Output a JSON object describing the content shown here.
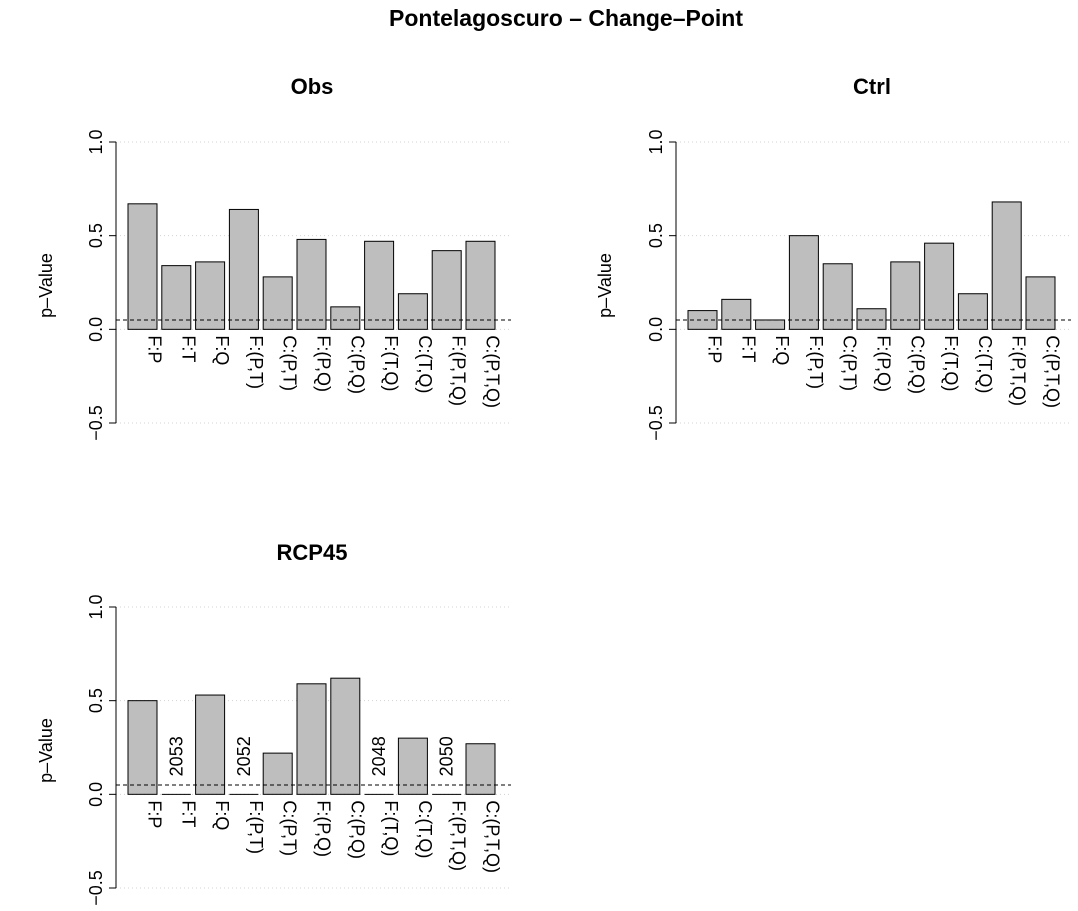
{
  "title": "Pontelagoscuro – Change–Point",
  "chart_data": [
    {
      "type": "bar",
      "title": "Obs",
      "ylabel": "p–Value",
      "ylim": [
        -0.5,
        1.0
      ],
      "yticks": [
        "−0.5",
        "0.0",
        "0.5",
        "1.0"
      ],
      "threshold": 0.05,
      "categories": [
        "F:P",
        "F:T",
        "F:Q",
        "F:(P,T)",
        "C:(P,T)",
        "F:(P,Q)",
        "C:(P,Q)",
        "F:(T,Q)",
        "C:(T,Q)",
        "F:(P,T,Q)",
        "C:(P,T,Q)"
      ],
      "values": [
        0.67,
        0.34,
        0.36,
        0.64,
        0.28,
        0.48,
        0.12,
        0.47,
        0.19,
        0.42,
        0.47
      ],
      "bar_labels": [
        "",
        "",
        "",
        "",
        "",
        "",
        "",
        "",
        "",
        "",
        ""
      ],
      "grid": "horizontal dotted"
    },
    {
      "type": "bar",
      "title": "Ctrl",
      "ylabel": "p–Value",
      "ylim": [
        -0.5,
        1.0
      ],
      "yticks": [
        "−0.5",
        "0.0",
        "0.5",
        "1.0"
      ],
      "threshold": 0.05,
      "categories": [
        "F:P",
        "F:T",
        "F:Q",
        "F:(P,T)",
        "C:(P,T)",
        "F:(P,Q)",
        "C:(P,Q)",
        "F:(T,Q)",
        "C:(T,Q)",
        "F:(P,T,Q)",
        "C:(P,T,Q)"
      ],
      "values": [
        0.1,
        0.16,
        0.05,
        0.5,
        0.35,
        0.11,
        0.36,
        0.46,
        0.19,
        0.68,
        0.28
      ],
      "bar_labels": [
        "",
        "",
        "",
        "",
        "",
        "",
        "",
        "",
        "",
        "",
        ""
      ],
      "grid": "horizontal dotted"
    },
    {
      "type": "bar",
      "title": "RCP45",
      "ylabel": "p–Value",
      "ylim": [
        -0.5,
        1.0
      ],
      "yticks": [
        "−0.5",
        "0.0",
        "0.5",
        "1.0"
      ],
      "threshold": 0.05,
      "categories": [
        "F:P",
        "F:T",
        "F:Q",
        "F:(P,T)",
        "C:(P,T)",
        "F:(P,Q)",
        "C:(P,Q)",
        "F:(T,Q)",
        "C:(T,Q)",
        "F:(P,T,Q)",
        "C:(P,T,Q)"
      ],
      "values": [
        0.5,
        0.0,
        0.53,
        0.0,
        0.22,
        0.59,
        0.62,
        0.0,
        0.3,
        0.0,
        0.27
      ],
      "bar_labels": [
        "",
        "2053",
        "",
        "2052",
        "",
        "",
        "",
        "2048",
        "",
        "2050",
        ""
      ],
      "grid": "horizontal dotted"
    }
  ]
}
